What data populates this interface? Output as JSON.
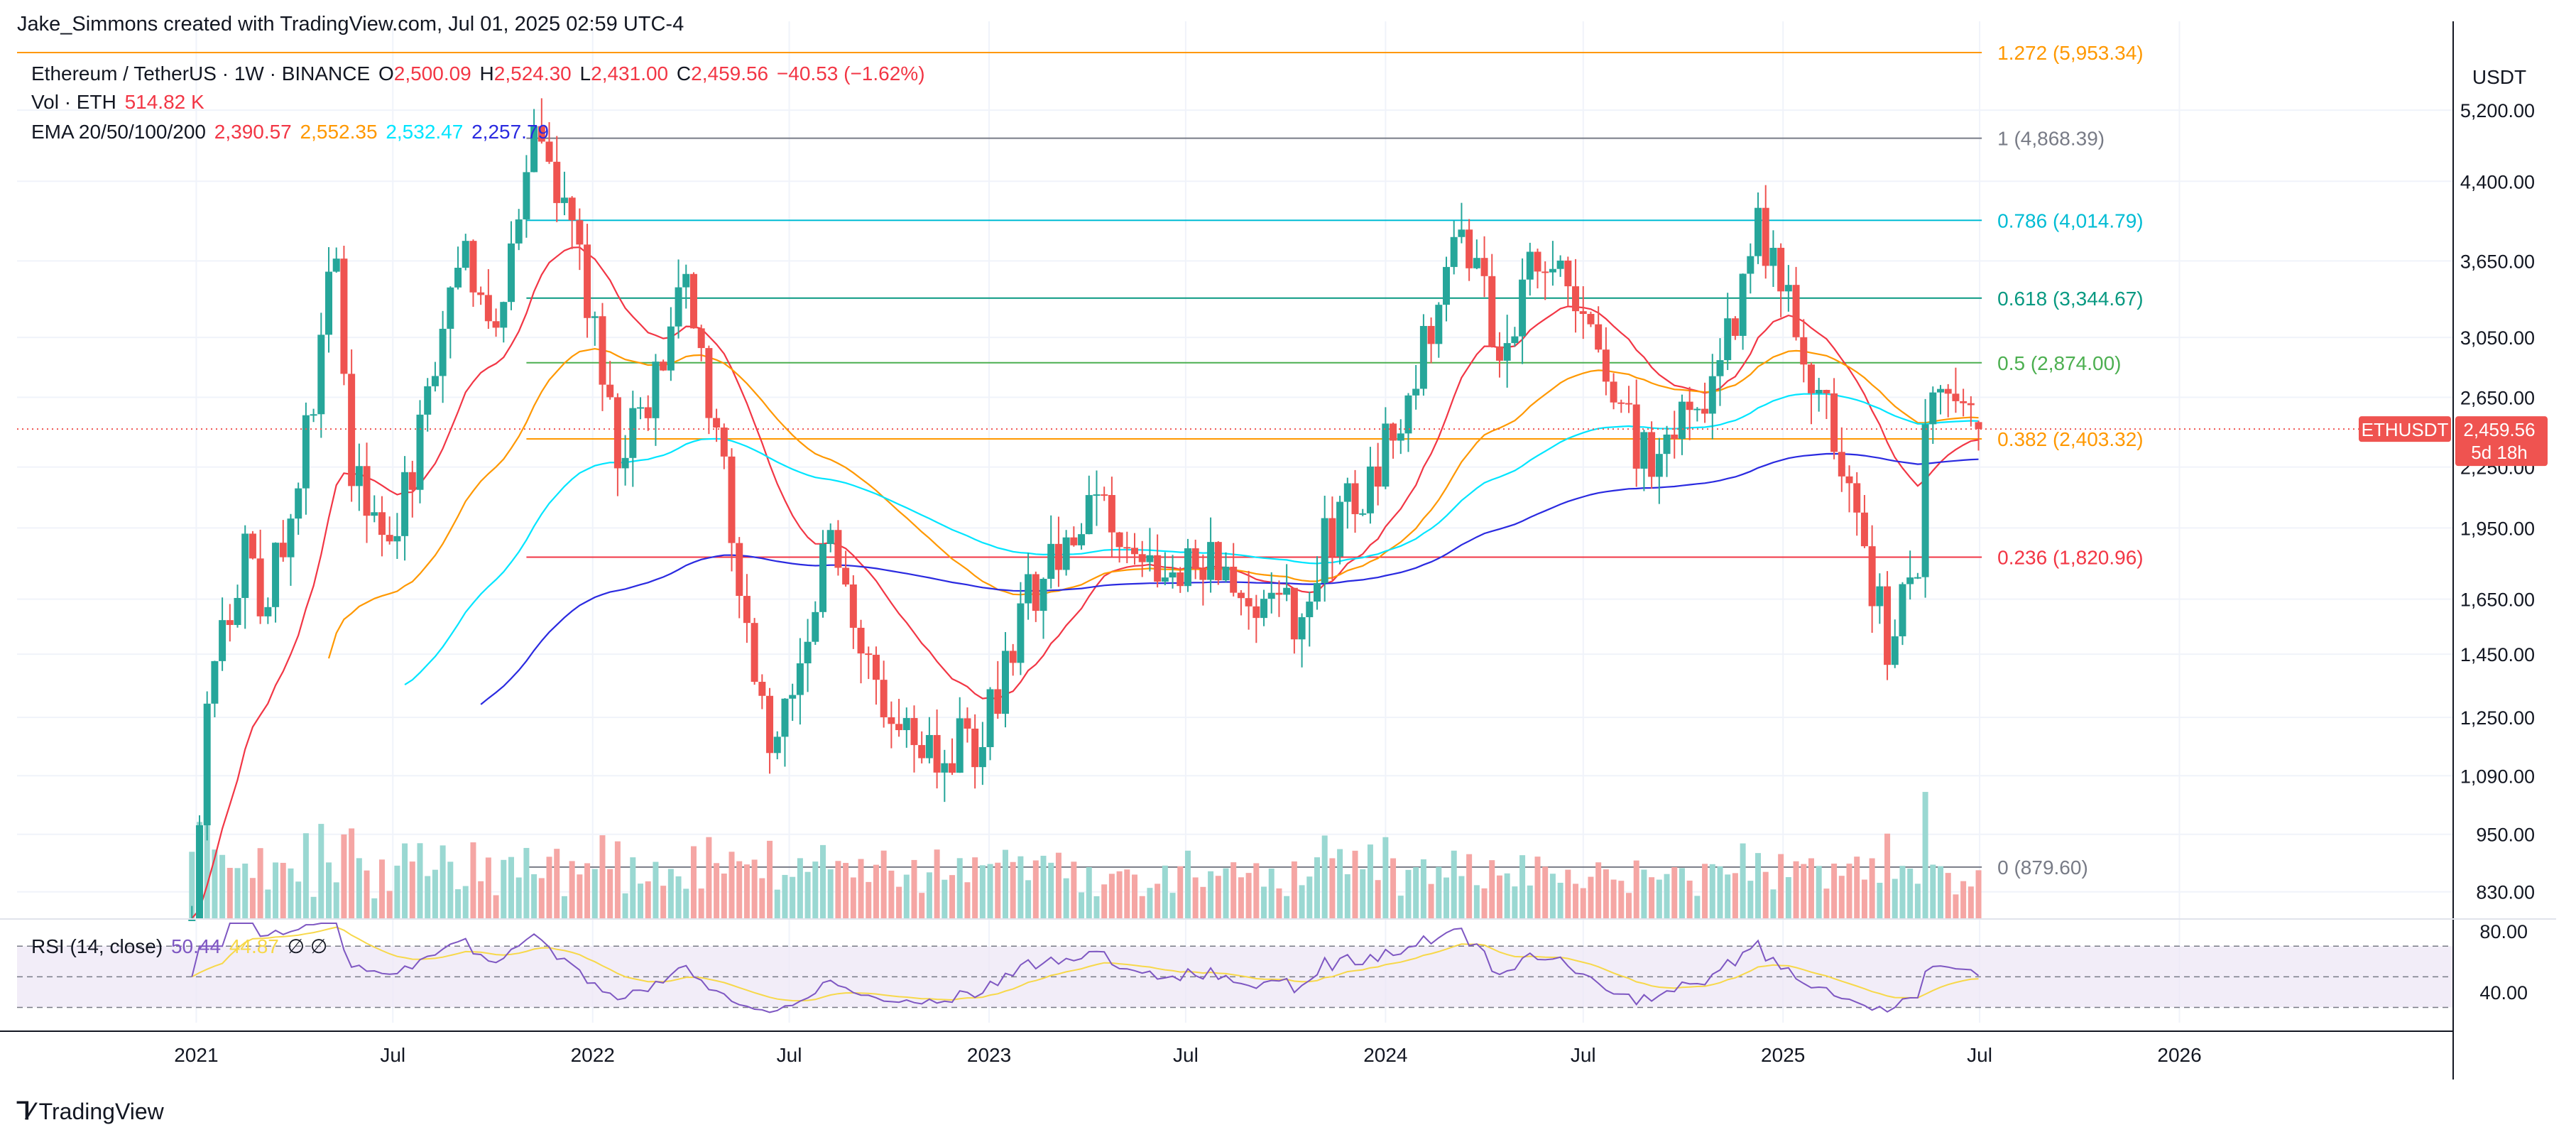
{
  "credit": "Jake_Simmons created with TradingView.com, Jul 01, 2025 02:59 UTC-4",
  "brand": "TradingView",
  "legend": {
    "symbol": "Ethereum / TetherUS · 1W · BINANCE",
    "o_label": "O",
    "o_value": "2,500.09",
    "h_label": "H",
    "h_value": "2,524.30",
    "l_label": "L",
    "l_value": "2,431.00",
    "c_label": "C",
    "c_value": "2,459.56",
    "change": "−40.53 (−1.62%)",
    "vol_label": "Vol · ETH",
    "vol_value": "514.82 K",
    "ema_label": "EMA 20/50/100/200",
    "ema_values": [
      "2,390.57",
      "2,552.35",
      "2,532.47",
      "2,257.79"
    ]
  },
  "colors": {
    "up": "#26a69a",
    "down": "#ef5350",
    "ema20": "#f23645",
    "ema50": "#ff9800",
    "ema100": "#00e5ff",
    "ema200": "#2a2ae0",
    "rsi": "#7e57c2",
    "rsi_ma": "#f7d84a"
  },
  "rsi_legend": {
    "label": "RSI (14, close)",
    "value": "50.44",
    "ma_value": "44.87",
    "extra": "∅ ∅"
  },
  "chart_data": {
    "type": "candlestick",
    "title": "Ethereum / TetherUS · 1W · BINANCE",
    "currency": "USDT",
    "y_scale": "log",
    "ylim": [
      780,
      6300
    ],
    "y_ticks": [
      "5,200.00",
      "4,400.00",
      "3,650.00",
      "3,050.00",
      "2,650.00",
      "2,250.00",
      "1,950.00",
      "1,650.00",
      "1,450.00",
      "1,250.00",
      "1,090.00",
      "950.00",
      "830.00"
    ],
    "x_range": [
      "2020-07-20",
      "2026-09-10"
    ],
    "x_ticks": [
      {
        "label": "2021",
        "date": "2021-01-01"
      },
      {
        "label": "Jul",
        "date": "2021-07-01"
      },
      {
        "label": "2022",
        "date": "2022-01-01"
      },
      {
        "label": "Jul",
        "date": "2022-07-01"
      },
      {
        "label": "2023",
        "date": "2023-01-01"
      },
      {
        "label": "Jul",
        "date": "2023-07-01"
      },
      {
        "label": "2024",
        "date": "2024-01-01"
      },
      {
        "label": "Jul",
        "date": "2024-07-01"
      },
      {
        "label": "2025",
        "date": "2025-01-01"
      },
      {
        "label": "Jul",
        "date": "2025-07-01"
      },
      {
        "label": "2026",
        "date": "2026-01-01"
      }
    ],
    "last_price": {
      "symbol": "ETHUSDT",
      "value": "2,459.56",
      "countdown": "5d 18h"
    },
    "fib_levels": [
      {
        "ratio": "1.272",
        "value": 5953.34,
        "label": "1.272 (5,953.34)",
        "color": "#ff9800"
      },
      {
        "ratio": "1",
        "value": 4868.39,
        "label": "1 (4,868.39)",
        "color": "#787b86"
      },
      {
        "ratio": "0.786",
        "value": 4014.79,
        "label": "0.786 (4,014.79)",
        "color": "#00bcd4"
      },
      {
        "ratio": "0.618",
        "value": 3344.67,
        "label": "0.618 (3,344.67)",
        "color": "#089981"
      },
      {
        "ratio": "0.5",
        "value": 2874.0,
        "label": "0.5 (2,874.00)",
        "color": "#4caf50"
      },
      {
        "ratio": "0.382",
        "value": 2403.32,
        "label": "0.382 (2,403.32)",
        "color": "#ff9800"
      },
      {
        "ratio": "0.236",
        "value": 1820.96,
        "label": "0.236 (1,820.96)",
        "color": "#f23645"
      },
      {
        "ratio": "0",
        "value": 879.6,
        "label": "0 (879.60)",
        "color": "#787b86"
      }
    ],
    "price_path": [
      {
        "date": "2020-12-28",
        "close": 737
      },
      {
        "date": "2021-01-11",
        "close": 1230
      },
      {
        "date": "2021-02-15",
        "close": 1930
      },
      {
        "date": "2021-03-01",
        "close": 1600
      },
      {
        "date": "2021-04-05",
        "close": 2100
      },
      {
        "date": "2021-05-10",
        "close": 3900
      },
      {
        "date": "2021-05-24",
        "close": 2300
      },
      {
        "date": "2021-06-21",
        "close": 1900
      },
      {
        "date": "2021-07-19",
        "close": 2200
      },
      {
        "date": "2021-09-06",
        "close": 3900
      },
      {
        "date": "2021-09-27",
        "close": 3000
      },
      {
        "date": "2021-11-08",
        "close": 4700
      },
      {
        "date": "2021-12-13",
        "close": 3900
      },
      {
        "date": "2022-01-24",
        "close": 2400
      },
      {
        "date": "2022-02-21",
        "close": 2600
      },
      {
        "date": "2022-03-28",
        "close": 3400
      },
      {
        "date": "2022-05-09",
        "close": 2000
      },
      {
        "date": "2022-06-13",
        "close": 1100
      },
      {
        "date": "2022-08-08",
        "close": 1900
      },
      {
        "date": "2022-09-19",
        "close": 1300
      },
      {
        "date": "2022-11-07",
        "close": 1150
      },
      {
        "date": "2022-12-26",
        "close": 1200
      },
      {
        "date": "2023-01-30",
        "close": 1600
      },
      {
        "date": "2023-04-17",
        "close": 2100
      },
      {
        "date": "2023-06-12",
        "close": 1700
      },
      {
        "date": "2023-07-10",
        "close": 1900
      },
      {
        "date": "2023-08-21",
        "close": 1650
      },
      {
        "date": "2023-10-16",
        "close": 1600
      },
      {
        "date": "2023-11-06",
        "close": 1900
      },
      {
        "date": "2024-01-08",
        "close": 2400
      },
      {
        "date": "2024-03-11",
        "close": 3900
      },
      {
        "date": "2024-04-15",
        "close": 3000
      },
      {
        "date": "2024-05-27",
        "close": 3800
      },
      {
        "date": "2024-07-01",
        "close": 3300
      },
      {
        "date": "2024-08-05",
        "close": 2500
      },
      {
        "date": "2024-09-02",
        "close": 2300
      },
      {
        "date": "2024-10-21",
        "close": 2600
      },
      {
        "date": "2024-12-09",
        "close": 3900
      },
      {
        "date": "2025-01-06",
        "close": 3300
      },
      {
        "date": "2025-02-03",
        "close": 2700
      },
      {
        "date": "2025-03-10",
        "close": 1900
      },
      {
        "date": "2025-04-07",
        "close": 1500
      },
      {
        "date": "2025-05-05",
        "close": 1800
      },
      {
        "date": "2025-05-12",
        "close": 2500
      },
      {
        "date": "2025-06-09",
        "close": 2600
      },
      {
        "date": "2025-06-30",
        "close": 2459.56
      }
    ],
    "volume_pane": {
      "label": "Vol · ETH"
    },
    "rsi_pane": {
      "label": "RSI (14, close)",
      "levels": [
        "80.00",
        "40.00"
      ],
      "ylim": [
        20,
        85
      ],
      "band": [
        30,
        70
      ]
    }
  }
}
